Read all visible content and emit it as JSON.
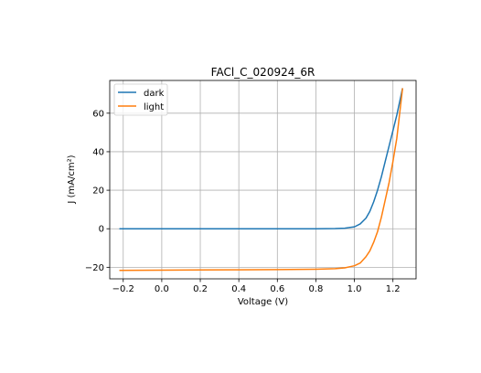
{
  "chart_data": {
    "type": "line",
    "title": "FACl_C_020924_6R",
    "xlabel": "Voltage (V)",
    "ylabel": "J (mA/cm²)",
    "xlim": [
      -0.27,
      1.32
    ],
    "ylim": [
      -26,
      77
    ],
    "xticks": [
      -0.2,
      0.0,
      0.2,
      0.4,
      0.6,
      0.8,
      1.0,
      1.2
    ],
    "xtick_labels": [
      "−0.2",
      "0.0",
      "0.2",
      "0.4",
      "0.6",
      "0.8",
      "1.0",
      "1.2"
    ],
    "yticks": [
      -20,
      0,
      20,
      40,
      60
    ],
    "ytick_labels": [
      "−20",
      "0",
      "20",
      "40",
      "60"
    ],
    "grid": true,
    "legend_position": "top-left",
    "series": [
      {
        "name": "dark",
        "color": "#1f77b4",
        "x": [
          -0.22,
          0.0,
          0.2,
          0.4,
          0.6,
          0.8,
          0.9,
          0.95,
          1.0,
          1.03,
          1.06,
          1.08,
          1.1,
          1.12,
          1.14,
          1.16,
          1.18,
          1.2,
          1.22,
          1.25
        ],
        "y": [
          0,
          0,
          0,
          0,
          0,
          0,
          0.1,
          0.3,
          1.0,
          2.5,
          5.5,
          9,
          14,
          20,
          27,
          35,
          43,
          51,
          59,
          73
        ]
      },
      {
        "name": "light",
        "color": "#ff7f0e",
        "x": [
          -0.22,
          0.0,
          0.2,
          0.4,
          0.6,
          0.8,
          0.9,
          0.95,
          1.0,
          1.03,
          1.06,
          1.08,
          1.1,
          1.12,
          1.14,
          1.16,
          1.18,
          1.2,
          1.22,
          1.25
        ],
        "y": [
          -21.6,
          -21.5,
          -21.4,
          -21.3,
          -21.2,
          -21.0,
          -20.7,
          -20.3,
          -19.2,
          -17.8,
          -14.5,
          -11.5,
          -7,
          -1.5,
          6,
          15,
          24,
          35,
          47,
          73
        ]
      }
    ]
  }
}
